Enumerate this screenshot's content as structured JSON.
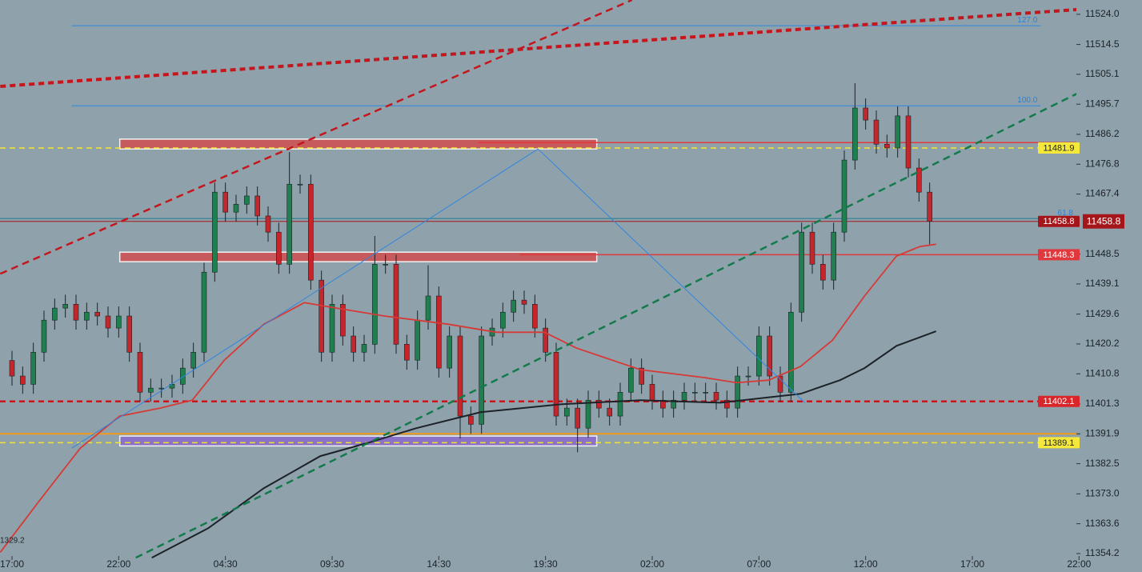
{
  "chart_data": {
    "type": "candlestick",
    "xlim": [
      -1.125,
      99.75
    ],
    "xticks": [
      {
        "value": 0,
        "label": "17:00"
      },
      {
        "value": 10,
        "label": "22:00"
      },
      {
        "value": 20,
        "label": "04:30"
      },
      {
        "value": 30,
        "label": "09:30"
      },
      {
        "value": 40,
        "label": "14:30"
      },
      {
        "value": 50,
        "label": "19:30"
      },
      {
        "value": 60,
        "label": "02:00"
      },
      {
        "value": 70,
        "label": "07:00"
      },
      {
        "value": 80,
        "label": "12:00"
      },
      {
        "value": 90,
        "label": "17:00"
      },
      {
        "value": 100,
        "label": "22:00"
      }
    ],
    "ylim": [
      11348.4,
      11528.5
    ],
    "yticks": [
      {
        "value": 11524,
        "label": "11524.0"
      },
      11514.5,
      11505.1,
      11495.7,
      11486.2,
      11476.8,
      11467.4,
      11448.5,
      11439.1,
      11429.6,
      11420.2,
      11410.8,
      11401.3,
      11391.9,
      11382.5,
      {
        "value": 11373,
        "label": "11373.0"
      },
      11363.6,
      11354.2
    ],
    "up_color": "#1f7f4f",
    "down_color": "#c4262b",
    "open": [
      11415.0,
      11410.1,
      11407.5,
      11417.6,
      11427.7,
      11431.5,
      11432.7,
      11427.7,
      11430.2,
      11429.0,
      11425.2,
      11429.0,
      11417.6,
      11405.0,
      11406.3,
      11406.3,
      11407.5,
      11412.6,
      11417.6,
      11442.8,
      11468.0,
      11461.7,
      11464.2,
      11466.8,
      11460.5,
      11455.4,
      11445.3,
      11470.5,
      11470.5,
      11440.3,
      11417.6,
      11432.7,
      11422.7,
      11417.6,
      11420.1,
      11445.3,
      11445.3,
      11420.1,
      11415.1,
      11427.7,
      11435.3,
      11412.6,
      11422.7,
      11397.5,
      11394.9,
      11422.7,
      11425.2,
      11430.2,
      11434.0,
      11432.7,
      11425.2,
      11417.6,
      11397.5,
      11400.0,
      11393.7,
      11402.5,
      11400.0,
      11397.5,
      11405.0,
      11412.6,
      11407.5,
      11402.5,
      11400.0,
      11402.5,
      11405.0,
      11405.0,
      11405.0,
      11402.5,
      11400.0,
      11410.1,
      11410.1,
      11422.7,
      11410.1,
      11405.0,
      11430.2,
      11455.4,
      11445.3,
      11440.3,
      11455.4,
      11478.1,
      11494.5,
      11490.7,
      11483.1,
      11481.9,
      11492.0,
      11475.6,
      11468.0
    ],
    "high": [
      11418.0,
      11413.1,
      11420.6,
      11430.7,
      11434.5,
      11435.7,
      11435.7,
      11433.2,
      11433.2,
      11432.0,
      11432.0,
      11432.0,
      11420.6,
      11409.3,
      11409.3,
      11410.5,
      11415.6,
      11420.6,
      11445.8,
      11471.0,
      11471.0,
      11467.2,
      11469.8,
      11469.8,
      11463.5,
      11458.4,
      11480.6,
      11473.5,
      11473.5,
      11443.3,
      11435.7,
      11435.7,
      11425.7,
      11423.1,
      11454.2,
      11448.3,
      11448.3,
      11423.1,
      11430.7,
      11445.0,
      11438.3,
      11425.7,
      11425.7,
      11400.5,
      11425.7,
      11428.2,
      11433.2,
      11437.0,
      11437.0,
      11435.7,
      11428.2,
      11420.6,
      11403.0,
      11403.0,
      11405.5,
      11405.5,
      11403.0,
      11408.0,
      11415.6,
      11415.6,
      11410.5,
      11405.5,
      11405.5,
      11408.0,
      11408.0,
      11408.0,
      11408.0,
      11405.5,
      11413.1,
      11413.1,
      11425.7,
      11425.7,
      11413.1,
      11433.2,
      11458.4,
      11458.4,
      11448.3,
      11458.4,
      11481.1,
      11502.3,
      11497.5,
      11493.7,
      11486.1,
      11495.0,
      11495.0,
      11478.6,
      11471.0
    ],
    "low": [
      11407.1,
      11404.5,
      11404.5,
      11414.6,
      11424.7,
      11428.5,
      11424.7,
      11424.7,
      11426.0,
      11422.2,
      11422.2,
      11414.6,
      11402.0,
      11402.0,
      11403.3,
      11403.3,
      11404.5,
      11409.6,
      11414.6,
      11439.8,
      11458.7,
      11458.7,
      11461.2,
      11457.5,
      11452.4,
      11442.3,
      11442.3,
      11467.5,
      11437.3,
      11414.6,
      11414.6,
      11419.7,
      11414.6,
      11414.6,
      11417.1,
      11442.3,
      11417.1,
      11412.1,
      11412.1,
      11424.7,
      11409.6,
      11409.6,
      11390.4,
      11391.9,
      11391.9,
      11419.7,
      11422.2,
      11427.2,
      11429.7,
      11422.2,
      11414.6,
      11394.5,
      11394.5,
      11386.1,
      11390.7,
      11397.0,
      11394.5,
      11394.5,
      11402.0,
      11404.5,
      11399.5,
      11397.0,
      11397.0,
      11399.5,
      11402.0,
      11402.0,
      11399.5,
      11397.0,
      11397.0,
      11407.1,
      11407.1,
      11407.1,
      11402.0,
      11402.0,
      11427.2,
      11442.3,
      11437.3,
      11437.3,
      11452.4,
      11475.1,
      11487.7,
      11480.1,
      11478.9,
      11478.9,
      11472.6,
      11465.0,
      11451.6
    ],
    "close": [
      11410.1,
      11407.5,
      11417.6,
      11427.7,
      11431.5,
      11432.7,
      11427.7,
      11430.2,
      11429.0,
      11425.2,
      11429.0,
      11417.6,
      11405.0,
      11406.3,
      11406.3,
      11407.5,
      11412.6,
      11417.6,
      11442.8,
      11468.0,
      11461.7,
      11464.2,
      11466.8,
      11460.5,
      11455.4,
      11445.3,
      11470.5,
      11470.5,
      11440.3,
      11417.6,
      11432.7,
      11422.7,
      11417.6,
      11420.1,
      11445.3,
      11445.3,
      11420.1,
      11415.1,
      11427.7,
      11435.3,
      11412.6,
      11422.7,
      11397.5,
      11394.9,
      11422.7,
      11425.2,
      11430.2,
      11434.0,
      11432.7,
      11425.2,
      11417.6,
      11397.5,
      11400.0,
      11393.7,
      11402.5,
      11400.0,
      11397.5,
      11405.0,
      11412.6,
      11407.5,
      11402.5,
      11400.0,
      11402.5,
      11405.0,
      11405.0,
      11405.0,
      11402.5,
      11400.0,
      11410.1,
      11410.1,
      11422.7,
      11410.1,
      11405.0,
      11430.2,
      11455.4,
      11445.3,
      11440.3,
      11455.4,
      11478.1,
      11494.5,
      11490.7,
      11483.1,
      11481.9,
      11492.0,
      11475.6,
      11468.0,
      11458.8
    ],
    "zones": [
      {
        "x0": 10.1,
        "x1": 54.8,
        "y0": 11481.6,
        "y1": 11484.7,
        "color": "#c65a5c"
      },
      {
        "x0": 10.1,
        "x1": 54.8,
        "y0": 11446.1,
        "y1": 11449.1,
        "color": "#c65a5c"
      },
      {
        "x0": 10.1,
        "x1": 54.8,
        "y0": 11388.1,
        "y1": 11391.2,
        "color": "#8a72c8"
      }
    ],
    "levels": [
      {
        "value": 11520.4,
        "from": 5.6,
        "to": 96.4,
        "color": "#2f86e0",
        "width": 1,
        "dash": false,
        "label": "127.0"
      },
      {
        "value": 11495.2,
        "from": 5.6,
        "to": 96.4,
        "color": "#2f86e0",
        "width": 1,
        "dash": false,
        "label": "100.0"
      },
      {
        "value": 11459.7,
        "from": -1.125,
        "to": 99.75,
        "color": "#1f7a8c",
        "width": 1,
        "dash": false,
        "label": "61.8"
      },
      {
        "value": 11458.8,
        "from": -1.125,
        "to": 99.75,
        "color": "#a5161b",
        "width": 1,
        "dash": false,
        "badge": "#a5161b"
      },
      {
        "value": 11483.6,
        "from": 43.7,
        "to": 99.75,
        "color": "#e0383c",
        "width": 1.5,
        "dash": false
      },
      {
        "value": 11481.9,
        "from": -1.125,
        "to": 99.75,
        "color": "#f2e33a",
        "width": 1.5,
        "dash": true,
        "badge": "#f5e83a"
      },
      {
        "value": 11448.3,
        "from": 47.6,
        "to": 99.75,
        "color": "#e0383c",
        "width": 1.5,
        "dash": false,
        "badge": "#e0383c"
      },
      {
        "value": 11402.1,
        "from": -1.125,
        "to": 99.75,
        "color": "#c4161c",
        "width": 2.5,
        "dash": true,
        "badge": "#d8262b"
      },
      {
        "value": 11391.9,
        "from": -1.125,
        "to": 99.75,
        "color": "#f29a1f",
        "width": 2,
        "dash": false
      },
      {
        "value": 11389.1,
        "from": -1.125,
        "to": 99.75,
        "color": "#f2e33a",
        "width": 1.5,
        "dash": true,
        "badge": "#f5e83a"
      }
    ],
    "overlays": [
      {
        "color": "#d63a36",
        "width": 1.8,
        "dash": "",
        "x": [
          -1.1,
          2.6,
          6.4,
          10.1,
          13.9,
          16.9,
          19.9,
          23.6,
          27.4,
          30.4,
          34.9,
          40.9,
          45.4,
          49.9,
          52.9,
          58.9,
          64.9,
          67.9,
          70.9,
          73.9,
          76.9,
          79.9,
          82.9,
          85.1,
          86.6
        ],
        "y": [
          11354.6,
          11371.0,
          11387.4,
          11397.5,
          11400.0,
          11402.5,
          11415.1,
          11426.4,
          11433.2,
          11431.5,
          11429.0,
          11426.4,
          11423.9,
          11423.9,
          11418.9,
          11412.1,
          11409.6,
          11408.0,
          11408.8,
          11413.1,
          11421.4,
          11435.3,
          11447.9,
          11450.9,
          11451.6
        ]
      },
      {
        "color": "#1c2228",
        "width": 2,
        "dash": "",
        "x": [
          13.1,
          18.4,
          23.6,
          28.9,
          33.4,
          37.9,
          43.9,
          51.4,
          58.9,
          66.4,
          73.9,
          77.6,
          79.9,
          82.9,
          86.6
        ],
        "y": [
          11352.9,
          11362.2,
          11374.8,
          11384.9,
          11389.1,
          11393.7,
          11398.7,
          11401.2,
          11402.5,
          11401.7,
          11404.5,
          11408.8,
          11412.6,
          11419.6,
          11424.2
        ]
      },
      {
        "color": "#c4161c",
        "width": 4,
        "dash": "7 5",
        "x": [
          -1.1,
          99.8
        ],
        "y": [
          11501.3,
          11525.5
        ]
      },
      {
        "color": "#c4161c",
        "width": 2.5,
        "dash": "9 6",
        "x": [
          -1.1,
          58.1
        ],
        "y": [
          11442.3,
          11528.5
        ]
      },
      {
        "color": "#137a4c",
        "width": 2.5,
        "dash": "9 6",
        "x": [
          11.6,
          99.8
        ],
        "y": [
          11352.9,
          11499.0
        ]
      },
      {
        "color": "#2f86e0",
        "width": 1,
        "dash": "",
        "x": [
          5.6,
          49.3,
          74.3
        ],
        "y": [
          11387.4,
          11481.6,
          11401.7
        ]
      }
    ],
    "annotations": [
      "1329.2"
    ]
  }
}
